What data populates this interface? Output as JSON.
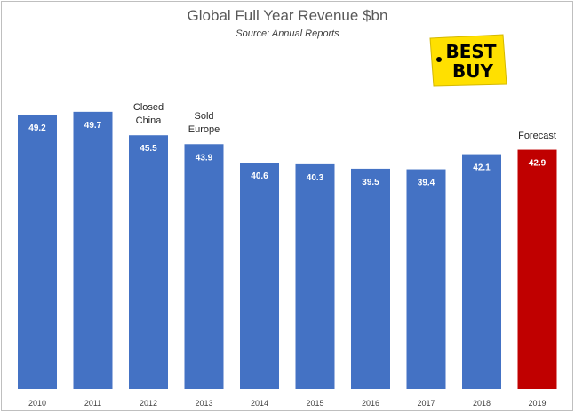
{
  "chart_data": {
    "type": "bar",
    "title": "Global Full Year Revenue $bn",
    "subtitle": "Source: Annual Reports",
    "categories": [
      "2010",
      "2011",
      "2012",
      "2013",
      "2014",
      "2015",
      "2016",
      "2017",
      "2018",
      "2019"
    ],
    "values": [
      49.2,
      49.7,
      45.5,
      43.9,
      40.6,
      40.3,
      39.5,
      39.4,
      42.1,
      42.9
    ],
    "value_labels": [
      "49.2",
      "49.7",
      "45.5",
      "43.9",
      "40.6",
      "40.3",
      "39.5",
      "39.4",
      "42.1",
      "42.9"
    ],
    "ylim": [
      0,
      57
    ],
    "grid": false,
    "colors": {
      "actual": "#4472c4",
      "forecast": "#c00000"
    },
    "highlight_index": 9,
    "annotations": [
      {
        "category": "2012",
        "text": "Closed China"
      },
      {
        "category": "2013",
        "text": "Sold Europe"
      },
      {
        "category": "2019",
        "text": "Forecast"
      }
    ]
  },
  "logo": {
    "line1": "BEST",
    "line2": "BUY",
    "colors": {
      "tag": "#ffe000",
      "text": "#000000"
    }
  }
}
